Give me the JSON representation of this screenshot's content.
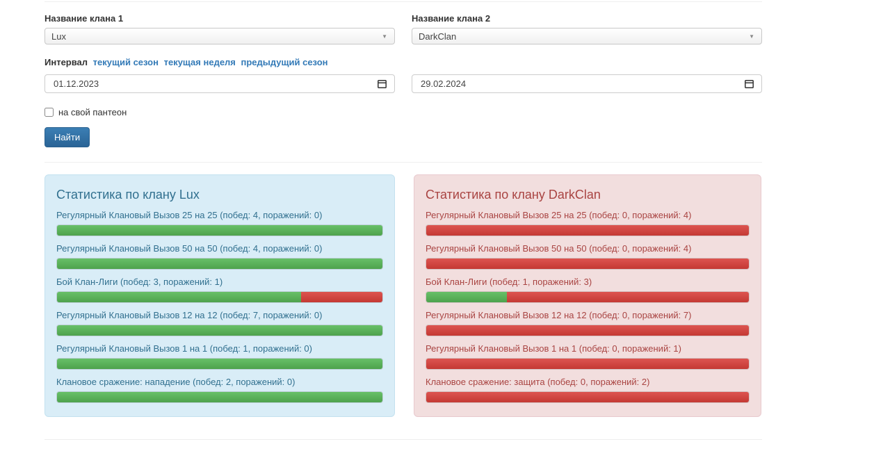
{
  "form": {
    "clan1": {
      "label": "Название клана 1",
      "value": "Lux"
    },
    "clan2": {
      "label": "Название клана 2",
      "value": "DarkClan"
    },
    "interval": {
      "label": "Интервал",
      "links": [
        "текущий сезон",
        "текущая неделя",
        "предыдущий сезон"
      ]
    },
    "date_from": "01.12.2023",
    "date_to": "29.02.2024",
    "checkbox_label": "на свой пантеон",
    "checkbox_checked": false,
    "submit_label": "Найти"
  },
  "icons": {
    "dropdown_arrow": "▼"
  },
  "colors": {
    "link_blue": "#337ab7",
    "button_blue": "#2a6496",
    "win_green": "#5cb85c",
    "loss_red": "#d9534f",
    "info_panel_bg": "#d9edf7",
    "info_panel_text": "#31708f",
    "danger_panel_bg": "#f2dede",
    "danger_panel_text": "#a94442"
  },
  "panels": [
    {
      "title": "Статистика по клану Lux",
      "rows": [
        {
          "label": "Регулярный Клановый Вызов 25 на 25 (побед: 4, поражений: 0)",
          "wins": 4,
          "losses": 0,
          "win_pct": 100
        },
        {
          "label": "Регулярный Клановый Вызов 50 на 50 (побед: 4, поражений: 0)",
          "wins": 4,
          "losses": 0,
          "win_pct": 100
        },
        {
          "label": "Бой Клан-Лиги (побед: 3, поражений: 1)",
          "wins": 3,
          "losses": 1,
          "win_pct": 75
        },
        {
          "label": "Регулярный Клановый Вызов 12 на 12 (побед: 7, поражений: 0)",
          "wins": 7,
          "losses": 0,
          "win_pct": 100
        },
        {
          "label": "Регулярный Клановый Вызов 1 на 1 (побед: 1, поражений: 0)",
          "wins": 1,
          "losses": 0,
          "win_pct": 100
        },
        {
          "label": "Клановое сражение: нападение (побед: 2, поражений: 0)",
          "wins": 2,
          "losses": 0,
          "win_pct": 100
        }
      ]
    },
    {
      "title": "Статистика по клану DarkClan",
      "rows": [
        {
          "label": "Регулярный Клановый Вызов 25 на 25 (побед: 0, поражений: 4)",
          "wins": 0,
          "losses": 4,
          "win_pct": 0
        },
        {
          "label": "Регулярный Клановый Вызов 50 на 50 (побед: 0, поражений: 4)",
          "wins": 0,
          "losses": 4,
          "win_pct": 0
        },
        {
          "label": "Бой Клан-Лиги (побед: 1, поражений: 3)",
          "wins": 1,
          "losses": 3,
          "win_pct": 25
        },
        {
          "label": "Регулярный Клановый Вызов 12 на 12 (побед: 0, поражений: 7)",
          "wins": 0,
          "losses": 7,
          "win_pct": 0
        },
        {
          "label": "Регулярный Клановый Вызов 1 на 1 (побед: 0, поражений: 1)",
          "wins": 0,
          "losses": 1,
          "win_pct": 0
        },
        {
          "label": "Клановое сражение: защита (побед: 0, поражений: 2)",
          "wins": 0,
          "losses": 2,
          "win_pct": 0
        }
      ]
    }
  ]
}
